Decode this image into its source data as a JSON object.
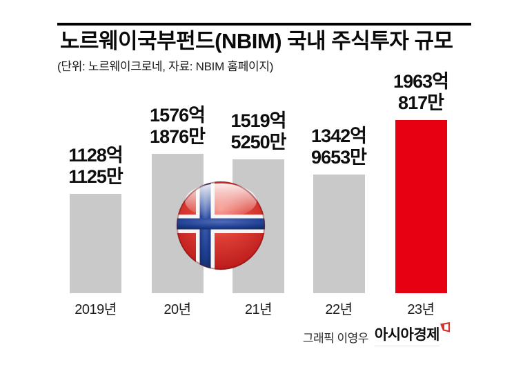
{
  "page": {
    "background": "#ffffff"
  },
  "header": {
    "title": "노르웨이국부펀드(NBIM) 국내 주식투자 규모",
    "subtitle": "(단위: 노르웨이크로네, 자료: NBIM 홈페이지)",
    "rule_color": "#000000"
  },
  "chart_data": {
    "type": "bar",
    "title": "노르웨이국부펀드(NBIM) 국내 주식투자 규모",
    "unit_label": "노르웨이크로네",
    "source_label": "NBIM 홈페이지",
    "categories": [
      "2019년",
      "20년",
      "21년",
      "22년",
      "23년"
    ],
    "values": [
      1128.1125,
      1576.1876,
      1519.525,
      1342.9653,
      1963.0817
    ],
    "values_unit": "억 노르웨이크로네",
    "value_labels": [
      [
        "1128억",
        "1125만"
      ],
      [
        "1576억",
        "1876만"
      ],
      [
        "1519억",
        "5250만"
      ],
      [
        "1342억",
        "9653만"
      ],
      [
        "1963억",
        "817만"
      ]
    ],
    "bar_colors": [
      "#c9c9c9",
      "#c9c9c9",
      "#c9c9c9",
      "#c9c9c9",
      "#e60012"
    ],
    "highlight_index": 4,
    "ylim": [
      0,
      1963.0817
    ],
    "grid": false,
    "legend": false
  },
  "flag_icon": {
    "name": "norway-flag",
    "red": "#cf2a28",
    "blue": "#1d3d8f",
    "white": "#ffffff"
  },
  "footer": {
    "credit": "그래픽 이영우",
    "brand": "아시아경제",
    "brand_mark_color": "#d6332f"
  }
}
